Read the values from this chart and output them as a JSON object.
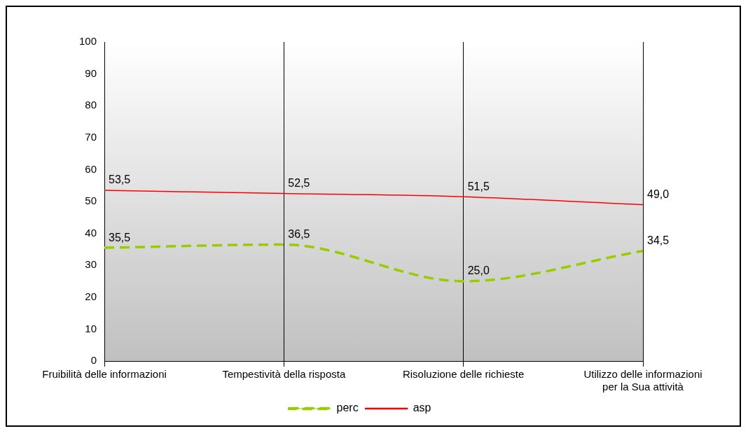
{
  "chart_data": {
    "type": "line",
    "categories": [
      "Fruibilità delle informazioni",
      "Tempestività della risposta",
      "Risoluzione delle richieste",
      "Utilizzo delle informazioni per la Sua attività"
    ],
    "series": [
      {
        "name": "perc",
        "color": "#99cc00",
        "values": [
          35.5,
          36.5,
          25.0,
          34.5
        ],
        "value_labels": [
          "35,5",
          "36,5",
          "25,0",
          "34,5"
        ],
        "line_style": "dashed"
      },
      {
        "name": "asp",
        "color": "#ff0000",
        "values": [
          53.5,
          52.5,
          51.5,
          49.0
        ],
        "value_labels": [
          "53,5",
          "52,5",
          "51,5",
          "49,0"
        ],
        "line_style": "solid"
      }
    ],
    "ylim": [
      0,
      100
    ],
    "yticks": [
      0,
      10,
      20,
      30,
      40,
      50,
      60,
      70,
      80,
      90,
      100
    ],
    "grid": "x",
    "legend": "bottom",
    "marker": "none"
  }
}
